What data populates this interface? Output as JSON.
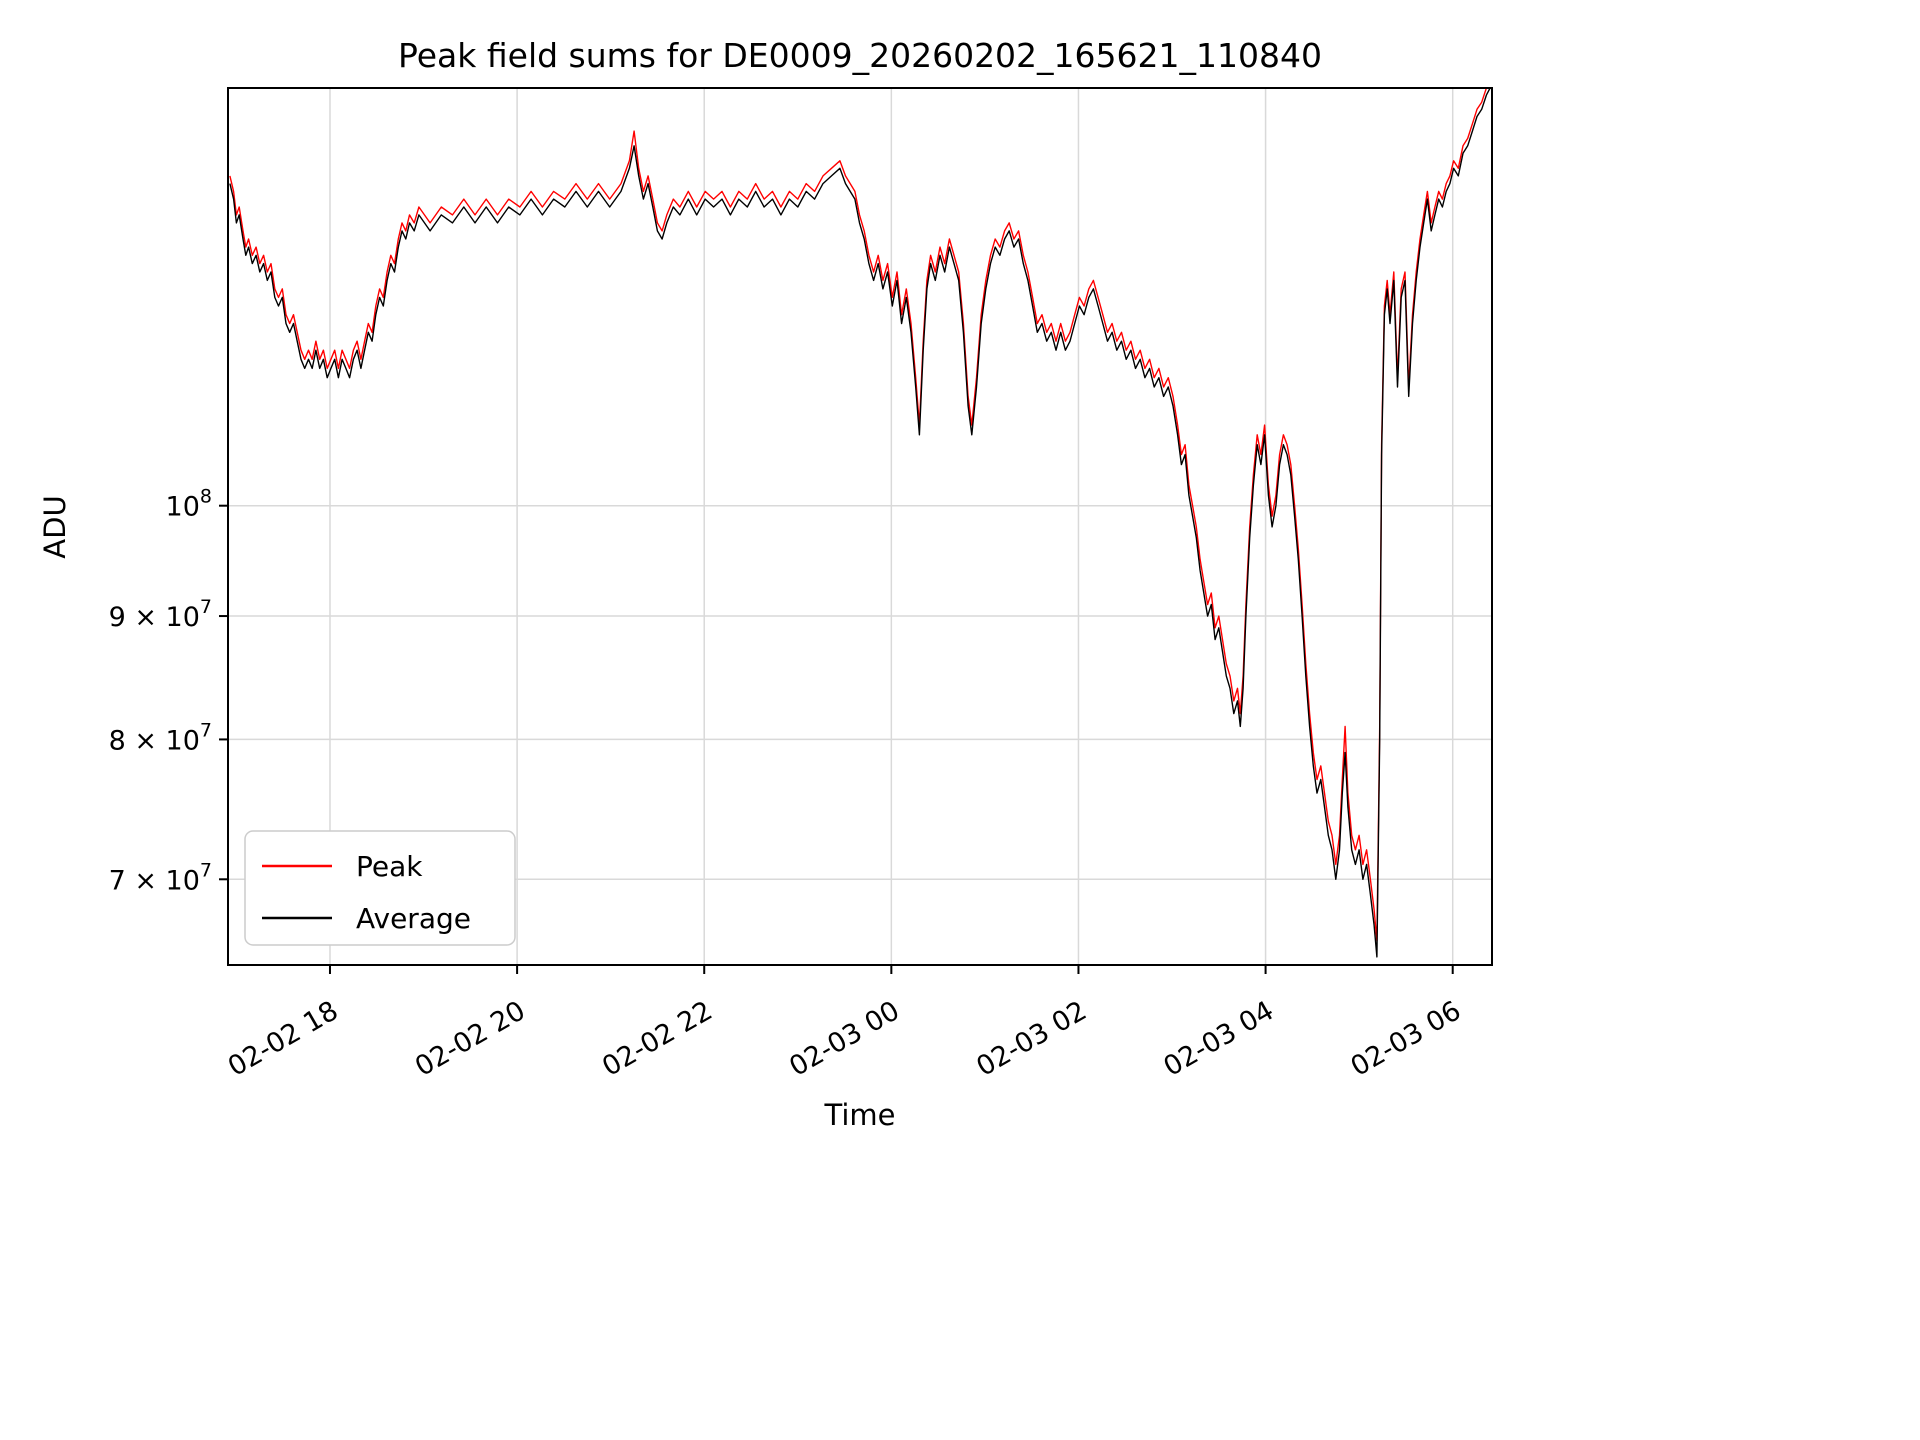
{
  "chart_data": {
    "type": "line",
    "title": "Peak field sums for DE0009_20260202_165621_110840",
    "xlabel": "Time",
    "ylabel": "ADU",
    "yscale": "log",
    "grid": true,
    "background": "#ffffff",
    "colors": {
      "grid": "#d9d9d9",
      "spine": "#000000",
      "peak": "#ff0000",
      "average": "#000000"
    },
    "xlim": [
      0.91,
      14.42
    ],
    "ylim": [
      64500000,
      149000000
    ],
    "x_unit": "hours since 2026-02-02 16:00",
    "value_unit": "1e6 ADU",
    "xticks": [
      {
        "t": 2,
        "label": "02-02 18"
      },
      {
        "t": 4,
        "label": "02-02 20"
      },
      {
        "t": 6,
        "label": "02-02 22"
      },
      {
        "t": 8,
        "label": "02-03 00"
      },
      {
        "t": 10,
        "label": "02-03 02"
      },
      {
        "t": 12,
        "label": "02-03 04"
      },
      {
        "t": 14,
        "label": "02-03 06"
      }
    ],
    "yticks": [
      {
        "v": 100000000,
        "base": "10",
        "exp": "8"
      },
      {
        "v": 90000000,
        "base": "9 × 10",
        "exp": "7"
      },
      {
        "v": 80000000,
        "base": "8 × 10",
        "exp": "7"
      },
      {
        "v": 70000000,
        "base": "7 × 10",
        "exp": "7"
      }
    ],
    "legend": {
      "position": "lower left",
      "entries": [
        {
          "name": "Peak",
          "color": "#ff0000"
        },
        {
          "name": "Average",
          "color": "#000000"
        }
      ]
    },
    "series_format": "[t_hours, average_M_ADU, peak_M_ADU]",
    "points": [
      [
        0.93,
        136,
        137
      ],
      [
        0.97,
        134,
        135
      ],
      [
        1.0,
        131,
        132
      ],
      [
        1.03,
        132,
        133
      ],
      [
        1.07,
        129,
        130
      ],
      [
        1.1,
        127,
        128
      ],
      [
        1.13,
        128,
        129
      ],
      [
        1.17,
        126,
        127
      ],
      [
        1.21,
        127,
        128
      ],
      [
        1.25,
        125,
        126
      ],
      [
        1.29,
        126,
        127
      ],
      [
        1.33,
        124,
        125
      ],
      [
        1.37,
        125,
        126
      ],
      [
        1.41,
        122,
        123
      ],
      [
        1.45,
        121,
        122
      ],
      [
        1.49,
        122,
        123
      ],
      [
        1.53,
        119,
        120
      ],
      [
        1.57,
        118,
        119
      ],
      [
        1.61,
        119,
        120
      ],
      [
        1.65,
        117,
        118
      ],
      [
        1.69,
        115,
        116
      ],
      [
        1.73,
        114,
        115
      ],
      [
        1.77,
        115,
        116
      ],
      [
        1.81,
        114,
        115
      ],
      [
        1.85,
        116,
        117
      ],
      [
        1.89,
        114,
        115
      ],
      [
        1.93,
        115,
        116
      ],
      [
        1.97,
        113,
        114
      ],
      [
        2.01,
        114,
        115
      ],
      [
        2.05,
        115,
        116
      ],
      [
        2.09,
        113,
        114
      ],
      [
        2.13,
        115,
        116
      ],
      [
        2.17,
        114,
        115
      ],
      [
        2.21,
        113,
        114
      ],
      [
        2.25,
        115,
        116
      ],
      [
        2.29,
        116,
        117
      ],
      [
        2.33,
        114,
        115
      ],
      [
        2.37,
        116,
        117
      ],
      [
        2.41,
        118,
        119
      ],
      [
        2.45,
        117,
        118
      ],
      [
        2.49,
        120,
        121
      ],
      [
        2.53,
        122,
        123
      ],
      [
        2.57,
        121,
        122
      ],
      [
        2.61,
        124,
        125
      ],
      [
        2.65,
        126,
        127
      ],
      [
        2.69,
        125,
        126
      ],
      [
        2.73,
        128,
        129
      ],
      [
        2.77,
        130,
        131
      ],
      [
        2.81,
        129,
        130
      ],
      [
        2.85,
        131,
        132
      ],
      [
        2.9,
        130,
        131
      ],
      [
        2.95,
        132,
        133
      ],
      [
        3.07,
        130,
        131
      ],
      [
        3.19,
        132,
        133
      ],
      [
        3.31,
        131,
        132
      ],
      [
        3.43,
        133,
        134
      ],
      [
        3.55,
        131,
        132
      ],
      [
        3.67,
        133,
        134
      ],
      [
        3.79,
        131,
        132
      ],
      [
        3.91,
        133,
        134
      ],
      [
        4.03,
        132,
        133
      ],
      [
        4.15,
        134,
        135
      ],
      [
        4.27,
        132,
        133
      ],
      [
        4.39,
        134,
        135
      ],
      [
        4.51,
        133,
        134
      ],
      [
        4.63,
        135,
        136
      ],
      [
        4.75,
        133,
        134
      ],
      [
        4.87,
        135,
        136
      ],
      [
        4.99,
        133,
        134
      ],
      [
        5.11,
        135,
        136
      ],
      [
        5.2,
        138,
        139
      ],
      [
        5.25,
        141,
        143
      ],
      [
        5.3,
        137,
        138
      ],
      [
        5.35,
        134,
        135
      ],
      [
        5.4,
        136,
        137
      ],
      [
        5.45,
        133,
        134
      ],
      [
        5.5,
        130,
        131
      ],
      [
        5.55,
        129,
        130
      ],
      [
        5.6,
        131,
        132
      ],
      [
        5.67,
        133,
        134
      ],
      [
        5.74,
        132,
        133
      ],
      [
        5.83,
        134,
        135
      ],
      [
        5.92,
        132,
        133
      ],
      [
        6.01,
        134,
        135
      ],
      [
        6.1,
        133,
        134
      ],
      [
        6.19,
        134,
        135
      ],
      [
        6.28,
        132,
        133
      ],
      [
        6.37,
        134,
        135
      ],
      [
        6.46,
        133,
        134
      ],
      [
        6.55,
        135,
        136
      ],
      [
        6.64,
        133,
        134
      ],
      [
        6.73,
        134,
        135
      ],
      [
        6.82,
        132,
        133
      ],
      [
        6.91,
        134,
        135
      ],
      [
        7.0,
        133,
        134
      ],
      [
        7.09,
        135,
        136
      ],
      [
        7.18,
        134,
        135
      ],
      [
        7.27,
        136,
        137
      ],
      [
        7.36,
        137,
        138
      ],
      [
        7.45,
        138,
        139
      ],
      [
        7.51,
        136,
        137
      ],
      [
        7.56,
        135,
        136
      ],
      [
        7.61,
        134,
        135
      ],
      [
        7.66,
        131,
        132
      ],
      [
        7.71,
        129,
        130
      ],
      [
        7.76,
        126,
        127
      ],
      [
        7.81,
        124,
        125
      ],
      [
        7.86,
        126,
        127
      ],
      [
        7.91,
        123,
        124
      ],
      [
        7.96,
        125,
        126
      ],
      [
        8.01,
        121,
        122
      ],
      [
        8.06,
        124,
        125
      ],
      [
        8.11,
        119,
        120
      ],
      [
        8.16,
        122,
        123
      ],
      [
        8.21,
        118,
        119
      ],
      [
        8.26,
        112,
        113
      ],
      [
        8.3,
        107,
        108
      ],
      [
        8.34,
        116,
        117
      ],
      [
        8.38,
        123,
        124
      ],
      [
        8.42,
        126,
        127
      ],
      [
        8.47,
        124,
        125
      ],
      [
        8.52,
        127,
        128
      ],
      [
        8.57,
        125,
        126
      ],
      [
        8.62,
        128,
        129
      ],
      [
        8.67,
        126,
        127
      ],
      [
        8.72,
        124,
        125
      ],
      [
        8.77,
        118,
        119
      ],
      [
        8.82,
        110,
        111
      ],
      [
        8.86,
        107,
        108
      ],
      [
        8.91,
        112,
        113
      ],
      [
        8.96,
        119,
        120
      ],
      [
        9.01,
        123,
        124
      ],
      [
        9.06,
        126,
        127
      ],
      [
        9.11,
        128,
        129
      ],
      [
        9.16,
        127,
        128
      ],
      [
        9.21,
        129,
        130
      ],
      [
        9.26,
        130,
        131
      ],
      [
        9.31,
        128,
        129
      ],
      [
        9.36,
        129,
        130
      ],
      [
        9.41,
        126,
        127
      ],
      [
        9.46,
        124,
        125
      ],
      [
        9.51,
        121,
        122
      ],
      [
        9.56,
        118,
        119
      ],
      [
        9.61,
        119,
        120
      ],
      [
        9.66,
        117,
        118
      ],
      [
        9.71,
        118,
        119
      ],
      [
        9.76,
        116,
        117
      ],
      [
        9.81,
        118,
        119
      ],
      [
        9.86,
        116,
        117
      ],
      [
        9.91,
        117,
        118
      ],
      [
        9.96,
        119,
        120
      ],
      [
        10.01,
        121,
        122
      ],
      [
        10.06,
        120,
        121
      ],
      [
        10.11,
        122,
        123
      ],
      [
        10.16,
        123,
        124
      ],
      [
        10.21,
        121,
        122
      ],
      [
        10.26,
        119,
        120
      ],
      [
        10.31,
        117,
        118
      ],
      [
        10.36,
        118,
        119
      ],
      [
        10.41,
        116,
        117
      ],
      [
        10.46,
        117,
        118
      ],
      [
        10.51,
        115,
        116
      ],
      [
        10.56,
        116,
        117
      ],
      [
        10.61,
        114,
        115
      ],
      [
        10.66,
        115,
        116
      ],
      [
        10.71,
        113,
        114
      ],
      [
        10.76,
        114,
        115
      ],
      [
        10.81,
        112,
        113
      ],
      [
        10.86,
        113,
        114
      ],
      [
        10.91,
        111,
        112
      ],
      [
        10.96,
        112,
        113
      ],
      [
        11.01,
        110,
        111
      ],
      [
        11.06,
        107,
        108
      ],
      [
        11.1,
        104,
        105
      ],
      [
        11.14,
        105,
        106
      ],
      [
        11.18,
        101,
        102
      ],
      [
        11.22,
        99,
        100
      ],
      [
        11.26,
        97,
        98
      ],
      [
        11.3,
        94,
        95
      ],
      [
        11.34,
        92,
        93
      ],
      [
        11.38,
        90,
        91
      ],
      [
        11.42,
        91,
        92
      ],
      [
        11.46,
        88,
        89
      ],
      [
        11.5,
        89,
        90
      ],
      [
        11.54,
        87,
        88
      ],
      [
        11.58,
        85,
        86
      ],
      [
        11.62,
        84,
        85
      ],
      [
        11.66,
        82,
        83
      ],
      [
        11.7,
        83,
        84
      ],
      [
        11.73,
        81,
        82
      ],
      [
        11.76,
        84,
        85
      ],
      [
        11.79,
        90,
        91
      ],
      [
        11.83,
        97,
        98
      ],
      [
        11.87,
        102,
        103
      ],
      [
        11.91,
        106,
        107
      ],
      [
        11.95,
        104,
        105
      ],
      [
        11.99,
        107,
        108
      ],
      [
        12.03,
        101,
        102
      ],
      [
        12.07,
        98,
        99
      ],
      [
        12.11,
        100,
        101
      ],
      [
        12.15,
        104,
        105
      ],
      [
        12.19,
        106,
        107
      ],
      [
        12.23,
        105,
        106
      ],
      [
        12.27,
        103,
        104
      ],
      [
        12.31,
        99,
        100
      ],
      [
        12.35,
        95,
        96
      ],
      [
        12.39,
        90,
        91
      ],
      [
        12.43,
        85,
        86
      ],
      [
        12.47,
        81,
        82
      ],
      [
        12.51,
        78,
        79
      ],
      [
        12.55,
        76,
        77
      ],
      [
        12.59,
        77,
        78
      ],
      [
        12.63,
        75,
        76
      ],
      [
        12.67,
        73,
        74
      ],
      [
        12.71,
        72,
        73
      ],
      [
        12.75,
        70,
        71
      ],
      [
        12.79,
        72,
        73
      ],
      [
        12.82,
        76,
        77
      ],
      [
        12.85,
        79,
        81
      ],
      [
        12.88,
        75,
        76
      ],
      [
        12.92,
        72,
        73
      ],
      [
        12.96,
        71,
        72
      ],
      [
        13.0,
        72,
        73
      ],
      [
        13.04,
        70,
        71
      ],
      [
        13.08,
        71,
        72
      ],
      [
        13.12,
        69,
        70
      ],
      [
        13.16,
        67,
        68
      ],
      [
        13.19,
        65,
        66
      ],
      [
        13.22,
        80,
        81
      ],
      [
        13.24,
        105,
        106
      ],
      [
        13.27,
        120,
        121
      ],
      [
        13.3,
        123,
        124
      ],
      [
        13.33,
        119,
        120
      ],
      [
        13.37,
        124,
        125
      ],
      [
        13.41,
        112,
        113
      ],
      [
        13.45,
        122,
        123
      ],
      [
        13.49,
        124,
        125
      ],
      [
        13.53,
        111,
        112
      ],
      [
        13.57,
        119,
        120
      ],
      [
        13.61,
        124,
        125
      ],
      [
        13.65,
        128,
        129
      ],
      [
        13.69,
        131,
        132
      ],
      [
        13.73,
        134,
        135
      ],
      [
        13.77,
        130,
        131
      ],
      [
        13.81,
        132,
        133
      ],
      [
        13.85,
        134,
        135
      ],
      [
        13.89,
        133,
        134
      ],
      [
        13.93,
        135,
        136
      ],
      [
        13.97,
        136,
        137
      ],
      [
        14.01,
        138,
        139
      ],
      [
        14.06,
        137,
        138
      ],
      [
        14.11,
        140,
        141
      ],
      [
        14.16,
        141,
        142
      ],
      [
        14.21,
        143,
        144
      ],
      [
        14.26,
        145,
        146
      ],
      [
        14.31,
        146,
        147
      ],
      [
        14.36,
        148,
        149
      ],
      [
        14.4,
        149,
        150
      ]
    ]
  }
}
